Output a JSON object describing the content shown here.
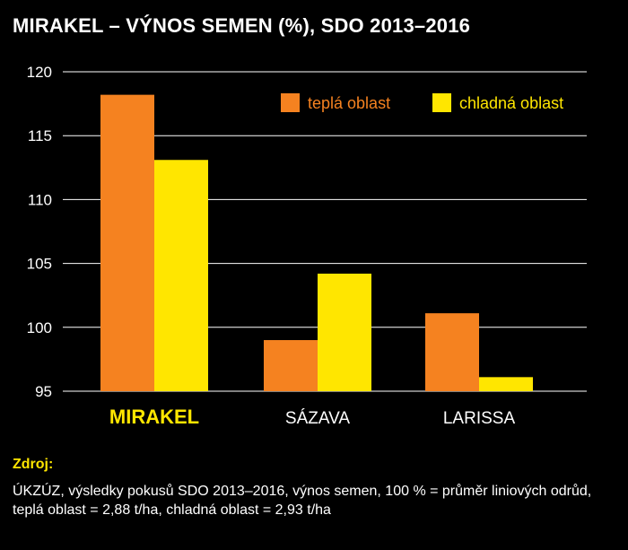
{
  "title": "MIRAKEL – VÝNOS SEMEN (%), SDO 2013–2016",
  "colors": {
    "warm": "#f58220",
    "cold": "#ffe600",
    "background": "#000000",
    "grid": "#ffffff",
    "text": "#ffffff",
    "highlight": "#ffe600"
  },
  "chart_data": {
    "type": "bar",
    "title": "MIRAKEL – VÝNOS SEMEN (%), SDO 2013–2016",
    "xlabel": "",
    "ylabel": "",
    "categories": [
      "MIRAKEL",
      "SÁZAVA",
      "LARISSA"
    ],
    "highlighted_category": "MIRAKEL",
    "series": [
      {
        "name": "teplá oblast",
        "color": "#f58220",
        "values": [
          118.2,
          99.0,
          101.1
        ]
      },
      {
        "name": "chladná oblast",
        "color": "#ffe600",
        "values": [
          113.1,
          104.2,
          96.1
        ]
      }
    ],
    "ylim": [
      95,
      120
    ],
    "yticks": [
      95,
      100,
      105,
      110,
      115,
      120
    ],
    "grid": true,
    "legend_position": "top-right"
  },
  "source": {
    "label": "Zdroj:",
    "text": "ÚKZÚZ, výsledky pokusů SDO 2013–2016, výnos semen, 100 % = průměr liniových odrůd, teplá oblast = 2,88 t/ha, chladná oblast = 2,93 t/ha"
  }
}
